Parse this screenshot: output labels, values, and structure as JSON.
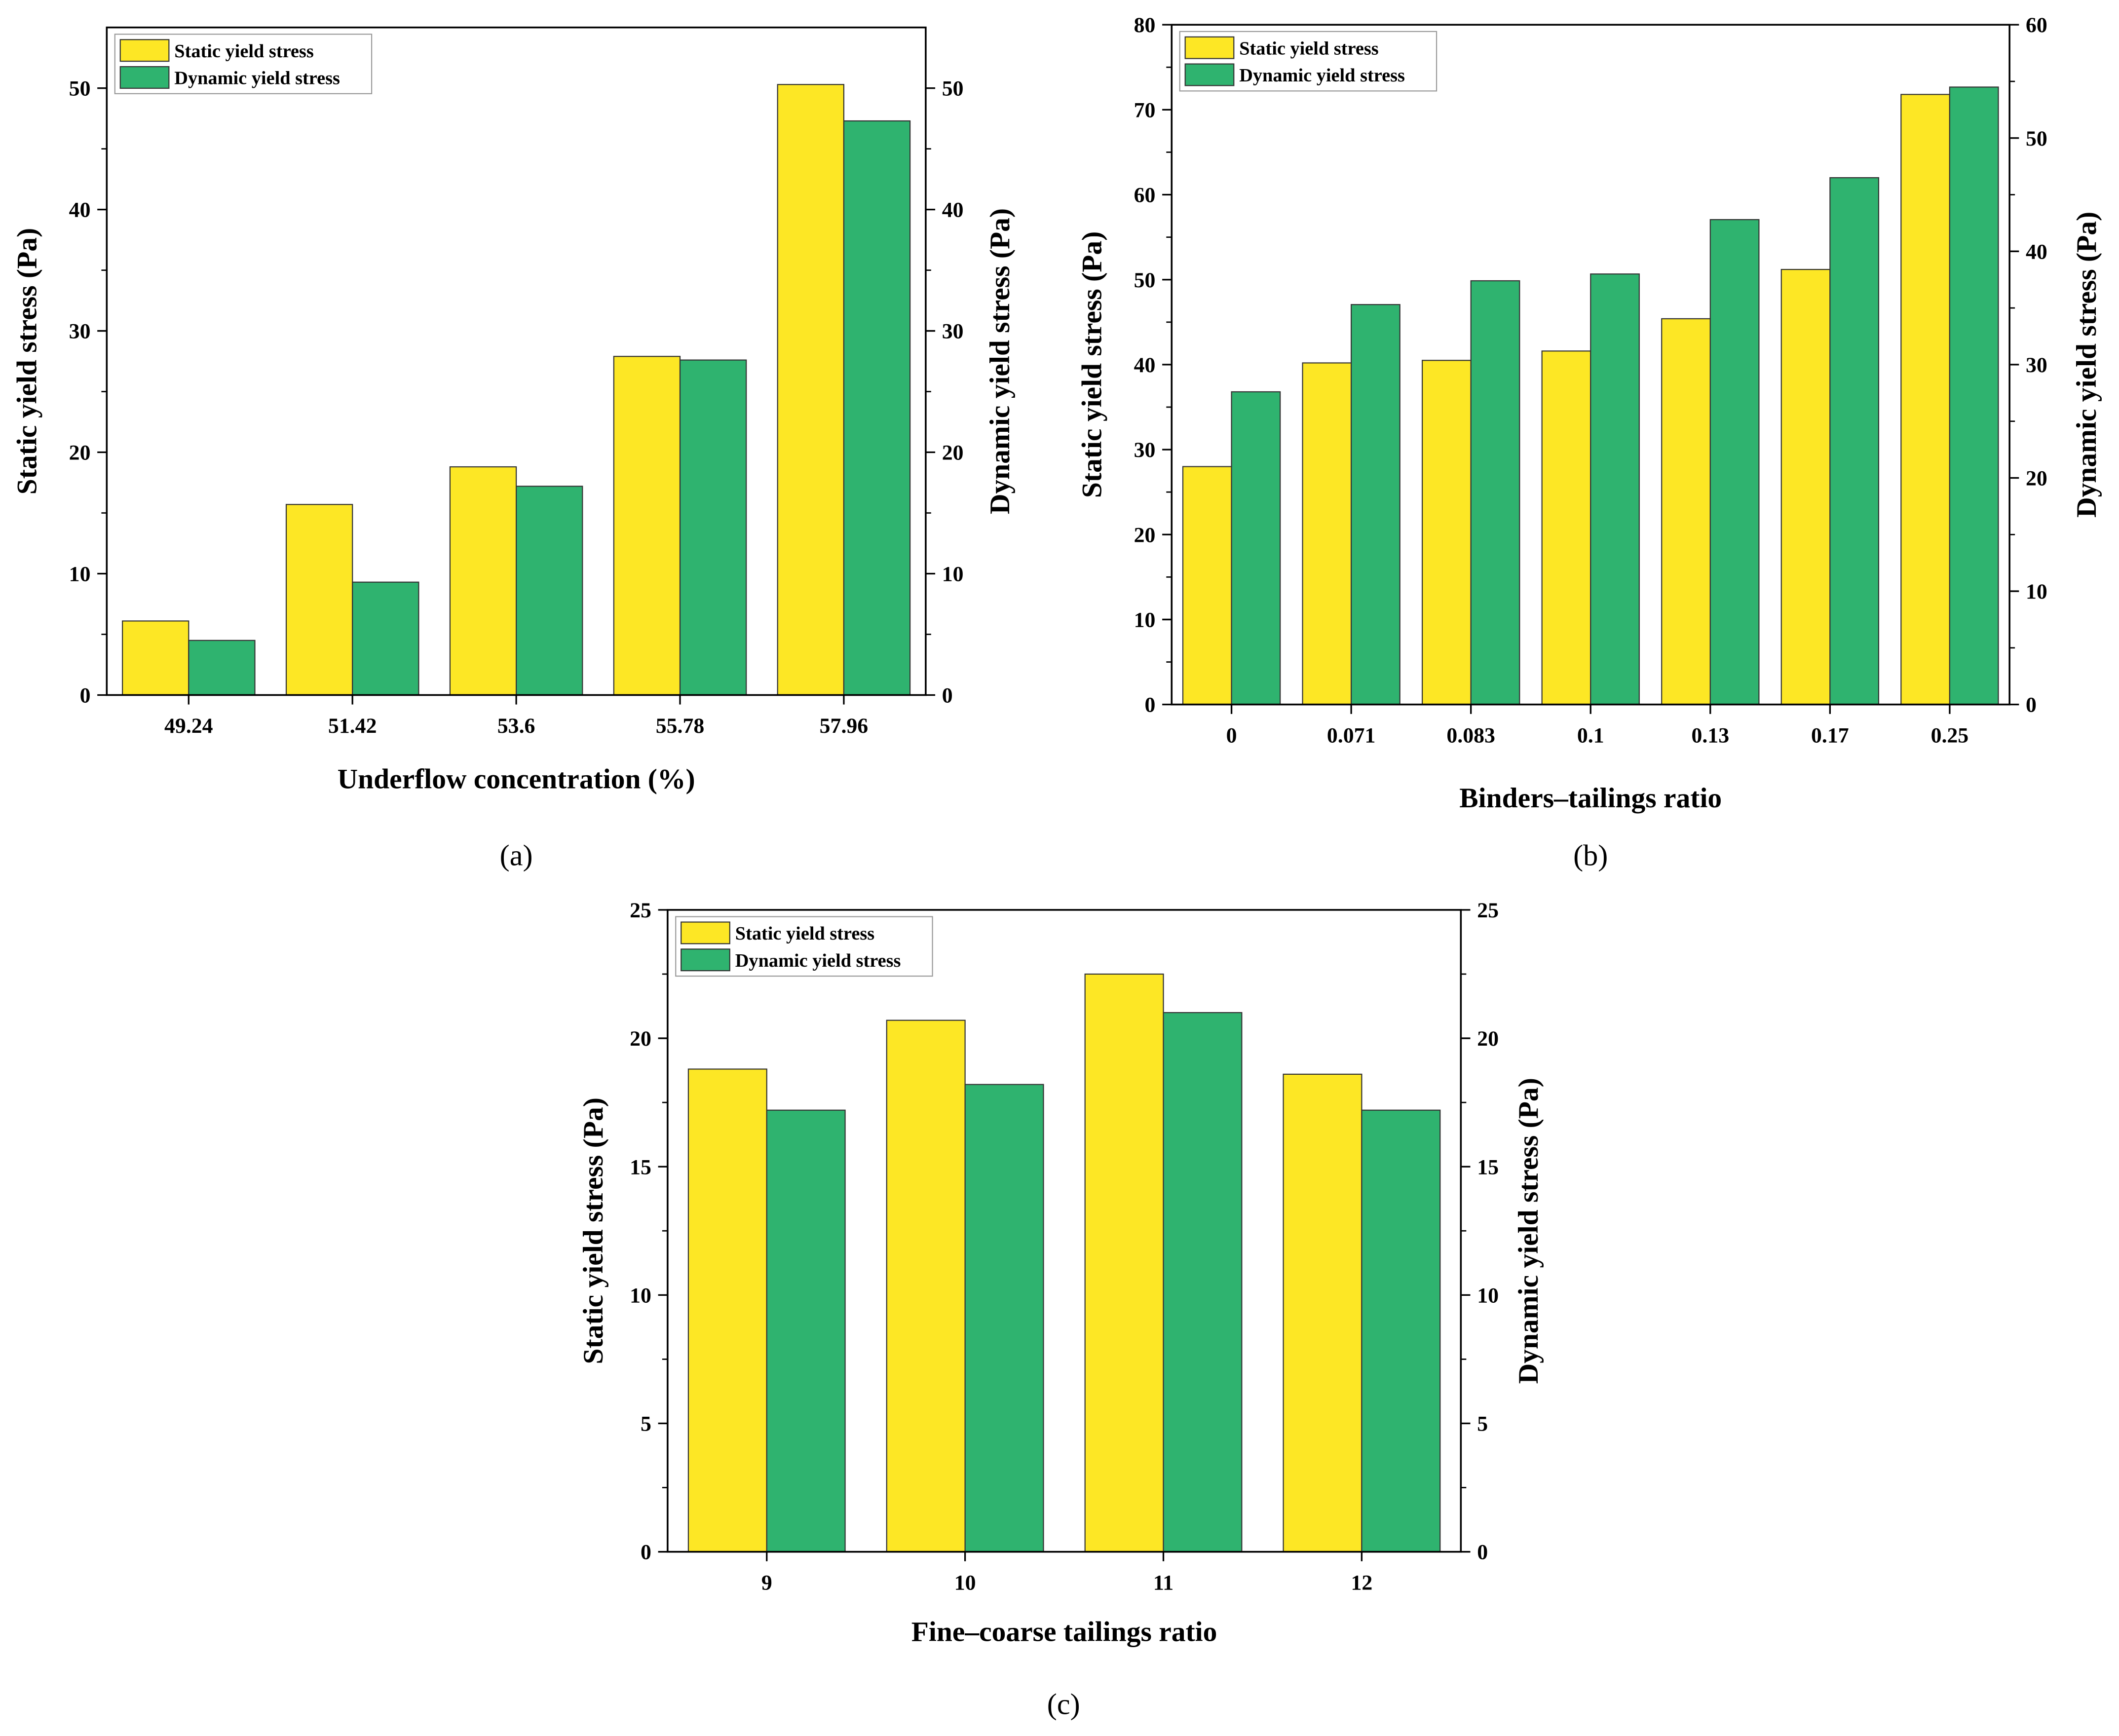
{
  "colors": {
    "static": "#FDE725",
    "dynamic": "#2FB36F",
    "axis": "#000000"
  },
  "chart_data": [
    {
      "type": "bar",
      "panel": "(a)",
      "xlabel": "Underflow concentration (%)",
      "ylabel": "Static yield stress (Pa)",
      "ylabel_right": "Dynamic yield stress (Pa)",
      "categories": [
        "49.24",
        "51.42",
        "53.6",
        "55.78",
        "57.96"
      ],
      "ylim": [
        0,
        55
      ],
      "yticks": [
        0,
        10,
        20,
        30,
        40,
        50
      ],
      "ylim_right": [
        0,
        55
      ],
      "yticks_right": [
        0,
        10,
        20,
        30,
        40,
        50
      ],
      "legend": "top-left",
      "series": [
        {
          "name": "Static yield stress",
          "axis": "left",
          "values": [
            6.1,
            15.7,
            18.8,
            27.9,
            50.3
          ]
        },
        {
          "name": "Dynamic yield stress",
          "axis": "right",
          "values": [
            4.5,
            9.3,
            17.2,
            27.6,
            47.3
          ]
        }
      ]
    },
    {
      "type": "bar",
      "panel": "(b)",
      "xlabel": "Binders–tailings ratio",
      "ylabel": "Static yield stress (Pa)",
      "ylabel_right": "Dynamic yield stress (Pa)",
      "categories": [
        "0",
        "0.071",
        "0.083",
        "0.1",
        "0.13",
        "0.17",
        "0.25"
      ],
      "ylim": [
        0,
        80
      ],
      "yticks": [
        0,
        10,
        20,
        30,
        40,
        50,
        60,
        70,
        80
      ],
      "ylim_right": [
        0,
        60
      ],
      "yticks_right": [
        0,
        10,
        20,
        30,
        40,
        50,
        60
      ],
      "legend": "top-left",
      "series": [
        {
          "name": "Static yield stress",
          "axis": "left",
          "values": [
            28.0,
            40.2,
            40.5,
            41.6,
            45.4,
            51.2,
            71.8
          ]
        },
        {
          "name": "Dynamic yield stress",
          "axis": "right",
          "values": [
            27.6,
            35.3,
            37.4,
            38.0,
            42.8,
            46.5,
            54.5
          ]
        }
      ]
    },
    {
      "type": "bar",
      "panel": "(c)",
      "xlabel": "Fine–coarse tailings ratio",
      "ylabel": "Static yield stress (Pa)",
      "ylabel_right": "Dynamic yield stress (Pa)",
      "categories": [
        "9",
        "10",
        "11",
        "12"
      ],
      "ylim": [
        0,
        25
      ],
      "yticks": [
        0,
        5,
        10,
        15,
        20,
        25
      ],
      "ylim_right": [
        0,
        25
      ],
      "yticks_right": [
        0,
        5,
        10,
        15,
        20,
        25
      ],
      "legend": "top-left",
      "series": [
        {
          "name": "Static yield stress",
          "axis": "left",
          "values": [
            18.8,
            20.7,
            22.5,
            18.6
          ]
        },
        {
          "name": "Dynamic yield stress",
          "axis": "right",
          "values": [
            17.2,
            18.2,
            21.0,
            17.2
          ]
        }
      ]
    }
  ]
}
